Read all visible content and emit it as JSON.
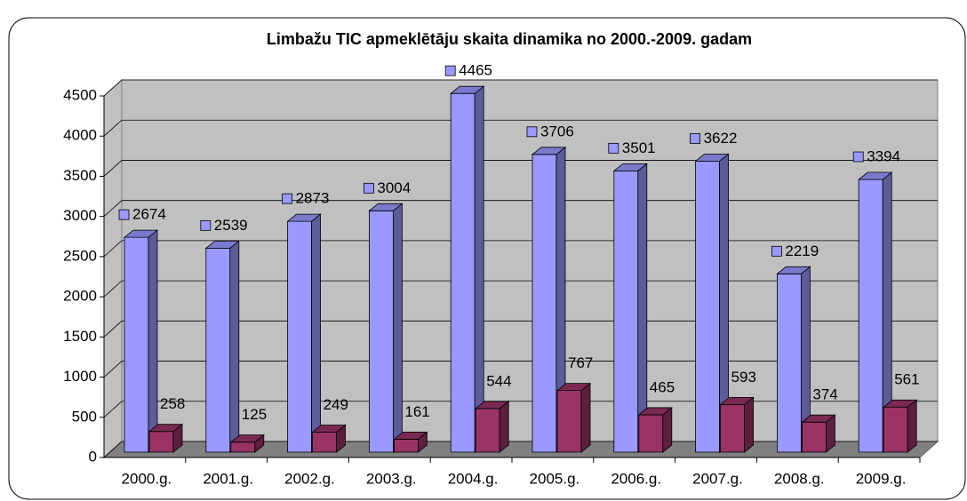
{
  "chart_data": {
    "type": "bar3d",
    "title": "Limbažu TIC apmeklētāju skaita dinamika no 2000.-2009. gadam",
    "categories": [
      "2000.g.",
      "2001.g.",
      "2002.g.",
      "2003.g.",
      "2004.g.",
      "2005.g.",
      "2006.g.",
      "2007.g.",
      "2008.g.",
      "2009.g."
    ],
    "series": [
      {
        "color": "#9999ff",
        "values": [
          2674,
          2539,
          2873,
          3004,
          4465,
          3706,
          3501,
          3622,
          2219,
          3394
        ]
      },
      {
        "color": "#993366",
        "values": [
          258,
          125,
          249,
          161,
          544,
          767,
          465,
          593,
          374,
          561
        ]
      }
    ],
    "ylim": [
      0,
      4500
    ],
    "yticks": [
      0,
      500,
      1000,
      1500,
      2000,
      2500,
      3000,
      3500,
      4000,
      4500
    ],
    "grid": true
  }
}
